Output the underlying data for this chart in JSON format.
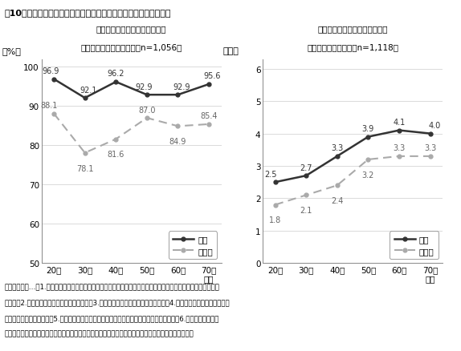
{
  "title": "図10　受けた医療に満足している割合、健康管理項目の平均回答数",
  "left_title_line1": "受けた医療に満足している割合",
  "left_title_line2": "－かかりつけ医の有無別（n=1,056）",
  "left_ylabel": "（%）",
  "right_title_line1": "年代別健康管理の平均回答数と",
  "right_title_line2": "かかりつけ医の有無（n=1,118）",
  "right_ylabel": "（点）",
  "x_labels": [
    "20代",
    "30代",
    "40代",
    "50代",
    "60代",
    "70歳\n以上"
  ],
  "left_iru": [
    96.9,
    92.1,
    96.2,
    92.9,
    92.9,
    95.6
  ],
  "left_inai": [
    88.1,
    78.1,
    81.6,
    87.0,
    84.9,
    85.4
  ],
  "right_iru": [
    2.5,
    2.7,
    3.3,
    3.9,
    4.1,
    4.0
  ],
  "right_inai": [
    1.8,
    2.1,
    2.4,
    3.2,
    3.3,
    3.3
  ],
  "left_ylim": [
    50,
    102
  ],
  "left_yticks": [
    50,
    60,
    70,
    80,
    90,
    100
  ],
  "right_ylim": [
    0,
    6.3
  ],
  "right_yticks": [
    0,
    1,
    2,
    3,
    4,
    5,
    6
  ],
  "color_iru": "#333333",
  "color_inai": "#aaaaaa",
  "legend_iru": "いる",
  "legend_inai": "いない",
  "footer_lines": [
    "健康管理項目…「1.栄養バランスなど食生活に気をつけている」「運動や体操をしている（ウォーキングなどを含",
    "む）」「2.規則正しい生活を心がけている」「3.休息や睡眠をとるようにしている」「4.サプリメントやトクホなどを",
    "定期的に摂取している」「5.新聞・テレビなどで健康の情報や知識を得るようにしている」「6.健康診断（定期健",
    "診、特定健診、人間ドックなど）を定期的に受けるようにしている」について「あてはまる」の回答数"
  ]
}
